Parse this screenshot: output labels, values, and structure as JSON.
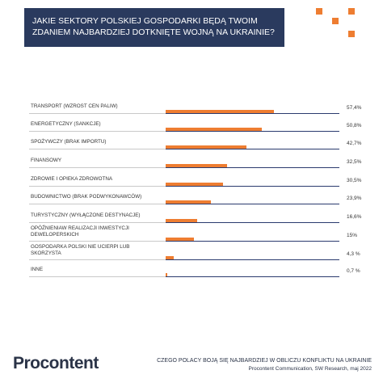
{
  "header": {
    "title": "JAKIE SEKTORY POLSKIEJ GOSPODARKI BĘDĄ TWOIM ZDANIEM NAJBARDZIEJ DOTKNIĘTE WOJNĄ NA UKRAINIE?"
  },
  "chart_data": {
    "type": "bar",
    "orientation": "horizontal",
    "categories": [
      "TRANSPORT (WZROST CEN PALIW)",
      "ENERGETYCZNY (SANKCJE)",
      "SPOŻYWCZY (BRAK IMPORTU)",
      "FINANSOWY",
      "ZDROWIE I OPIEKA ZDROWOTNA",
      "BUDOWNICTWO (BRAK PODWYKONAWCÓW)",
      "TURYSTYCZNY (WYŁĄCZONE DESTYNACJE)",
      "OPÓŹNIENIAW REALIZACJI INWESTYCJI DEWELOPERSKICH",
      "GOSPODARKA POLSKI NIE UCIERPI LUB SKORZYSTA",
      "INNE"
    ],
    "values": [
      57.4,
      50.8,
      42.7,
      32.5,
      30.5,
      23.9,
      16.6,
      15,
      4.3,
      0.7
    ],
    "value_labels": [
      "57,4%",
      "50,8%",
      "42,7%",
      "32,5%",
      "30,5%",
      "23,9%",
      "16,6%",
      "15%",
      "4,3 %",
      "0,7 %"
    ],
    "color": "#ee7d31",
    "xlim": [
      0,
      100
    ]
  },
  "footer": {
    "logo": "Procontent",
    "title": "CZEGO POLACY BOJĄ SIĘ NAJBARDZIEJ W OBLICZU KONFLIKTU NA UKRAINIE",
    "source": "Procontent Communication, SW Research, maj 2022"
  }
}
